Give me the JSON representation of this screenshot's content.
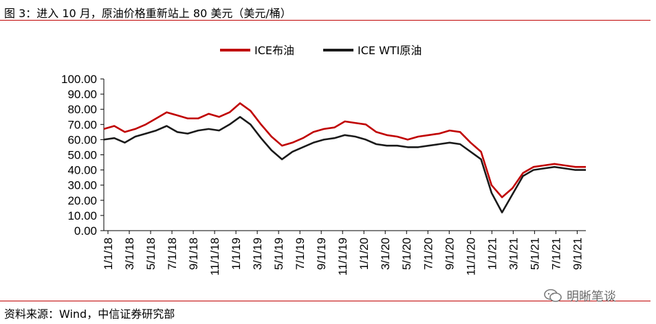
{
  "title": "图 3：进入 10 月，原油价格重新站上 80 美元（美元/桶）",
  "source": "资料来源：Wind，中信证券研究部",
  "watermark": "明晰笔谈",
  "chart_data": {
    "type": "line",
    "ylim": [
      0,
      100
    ],
    "yticks": [
      "100.00",
      "90.00",
      "80.00",
      "70.00",
      "60.00",
      "50.00",
      "40.00",
      "30.00",
      "20.00",
      "10.00",
      "0.00"
    ],
    "xticks": [
      "1/1/18",
      "3/1/18",
      "5/1/18",
      "7/1/18",
      "9/1/18",
      "11/1/18",
      "1/1/19",
      "3/1/19",
      "5/1/19",
      "7/1/19",
      "9/1/19",
      "11/1/19",
      "1/1/20",
      "3/1/20",
      "5/1/20",
      "7/1/20",
      "9/1/20",
      "11/1/20",
      "1/1/21",
      "3/1/21",
      "5/1/21",
      "7/1/21",
      "9/1/21"
    ],
    "legend_position": "top-center",
    "grid": false,
    "series": [
      {
        "name": "ICE布油",
        "color": "#c00000",
        "x": [
          0,
          1,
          2,
          3,
          4,
          5,
          6,
          7,
          8,
          9,
          10,
          11,
          12,
          13,
          14,
          15,
          16,
          17,
          18,
          19,
          20,
          21,
          22,
          23,
          24,
          25,
          26,
          27,
          28,
          29,
          30,
          31,
          32,
          33,
          34,
          35,
          36,
          37,
          38,
          39,
          40,
          41,
          42,
          43,
          44,
          45,
          46
        ],
        "values": [
          67,
          69,
          65,
          67,
          70,
          74,
          78,
          76,
          74,
          74,
          77,
          75,
          78,
          84,
          79,
          70,
          62,
          56,
          58,
          61,
          65,
          67,
          68,
          72,
          71,
          70,
          65,
          63,
          62,
          60,
          62,
          63,
          64,
          66,
          65,
          58,
          52,
          30,
          22,
          28,
          38,
          42,
          43,
          44,
          43,
          42,
          42
        ]
      },
      {
        "name": "ICE WTI原油",
        "color": "#1a1a1a",
        "x": [
          0,
          1,
          2,
          3,
          4,
          5,
          6,
          7,
          8,
          9,
          10,
          11,
          12,
          13,
          14,
          15,
          16,
          17,
          18,
          19,
          20,
          21,
          22,
          23,
          24,
          25,
          26,
          27,
          28,
          29,
          30,
          31,
          32,
          33,
          34,
          35,
          36,
          37,
          38,
          39,
          40,
          41,
          42,
          43,
          44,
          45,
          46
        ],
        "values": [
          60,
          61,
          58,
          62,
          64,
          66,
          69,
          65,
          64,
          66,
          67,
          66,
          70,
          75,
          70,
          61,
          53,
          47,
          52,
          55,
          58,
          60,
          61,
          63,
          62,
          60,
          57,
          56,
          56,
          55,
          55,
          56,
          57,
          58,
          57,
          52,
          47,
          25,
          12,
          24,
          36,
          40,
          41,
          42,
          41,
          40,
          40
        ]
      }
    ]
  }
}
